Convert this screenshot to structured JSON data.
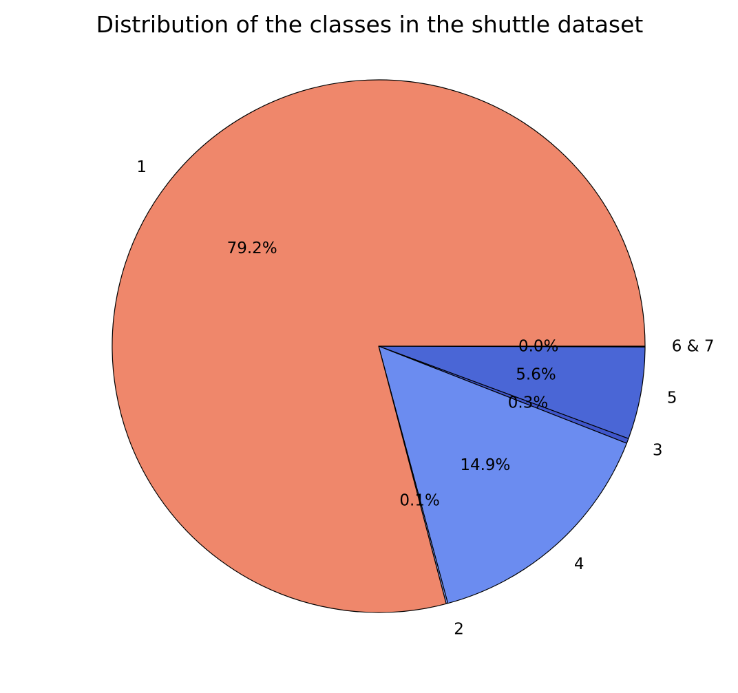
{
  "chart_data": {
    "type": "pie",
    "title": "Distribution of the classes in the shuttle dataset",
    "slices": [
      {
        "label": "6 & 7",
        "value": 0.05,
        "pct_label": "0.0%",
        "color": "#3a4cc0"
      },
      {
        "label": "5",
        "value": 5.6,
        "pct_label": "5.6%",
        "color": "#4a66d6"
      },
      {
        "label": "3",
        "value": 0.3,
        "pct_label": "0.3%",
        "color": "#3f56cc"
      },
      {
        "label": "4",
        "value": 14.9,
        "pct_label": "14.9%",
        "color": "#6b8cf0"
      },
      {
        "label": "2",
        "value": 0.1,
        "pct_label": "0.1%",
        "color": "#7f9df5"
      },
      {
        "label": "1",
        "value": 79.2,
        "pct_label": "79.2%",
        "color": "#ef876b"
      }
    ],
    "start_angle_deg": 0,
    "direction": "clockwise",
    "legend": "none"
  }
}
